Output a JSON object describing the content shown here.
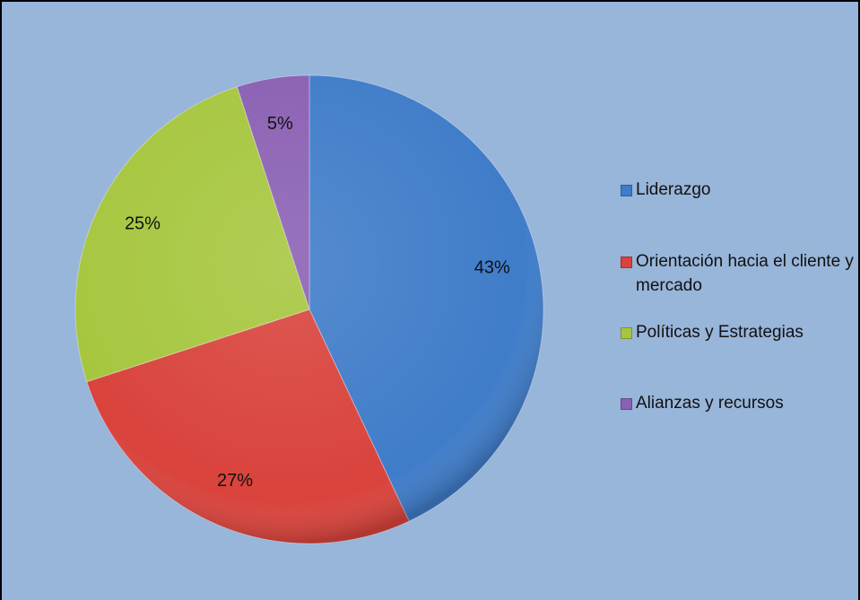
{
  "chart_data": {
    "type": "pie",
    "categories": [
      "Liderazgo",
      "Orientación hacia el cliente y mercado",
      "Políticas y Estrategias",
      "Alianzas y recursos"
    ],
    "values": [
      43,
      27,
      25,
      5
    ],
    "value_labels": [
      "43%",
      "27%",
      "25%",
      "5%"
    ],
    "colors": [
      "#3f7cc9",
      "#d9433c",
      "#a6c63e",
      "#8a60b3"
    ],
    "legend": "right"
  }
}
